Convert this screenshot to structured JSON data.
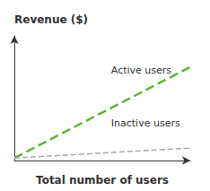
{
  "chart_data": {
    "type": "line",
    "x_label": "Total number of users",
    "y_label": "Revenue ($)",
    "x": [
      0.0,
      1.0
    ],
    "series": [
      {
        "name": "Active users",
        "color": "#5cb533",
        "line_style": "dashed",
        "values": [
          0.02,
          0.75
        ]
      },
      {
        "name": "Inactive users",
        "color": "#aaaaaa",
        "line_style": "dashed",
        "values": [
          0.02,
          0.1
        ]
      }
    ],
    "xlim": [
      0.0,
      1.0
    ],
    "ylim": [
      0.0,
      1.0
    ],
    "tick_labels": false,
    "grid": false
  }
}
